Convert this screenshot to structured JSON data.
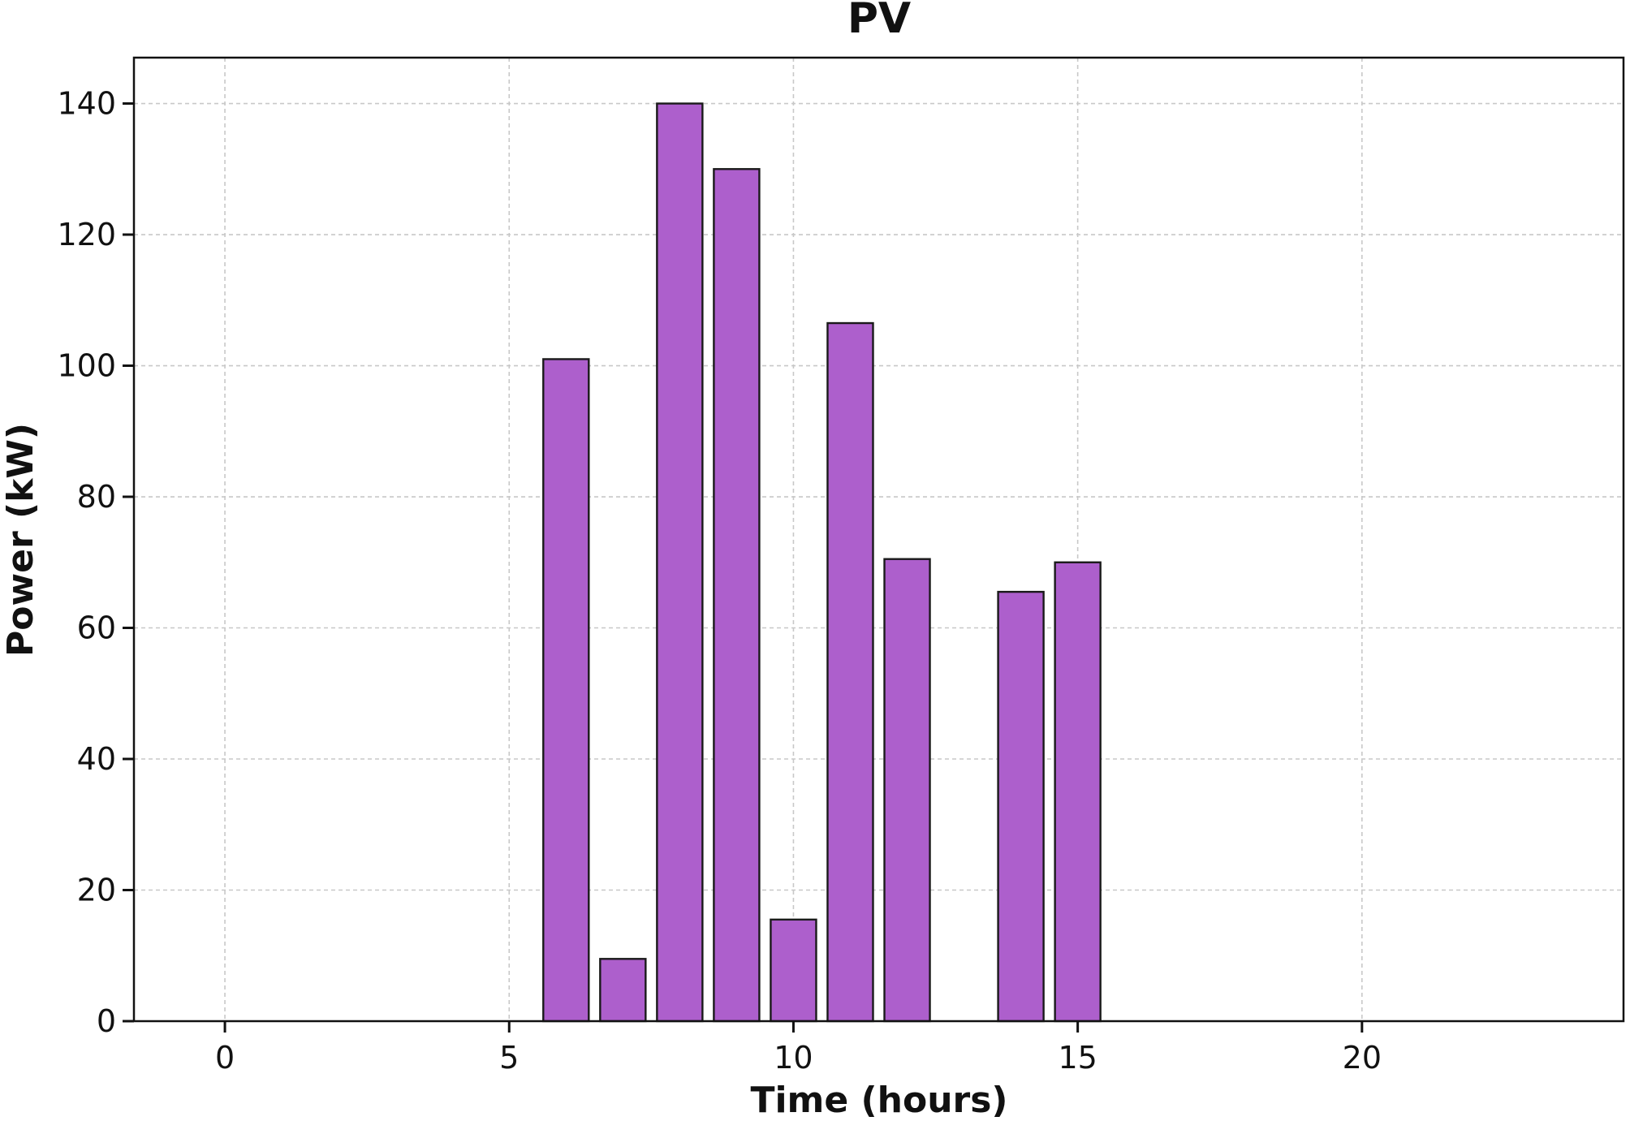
{
  "chart_data": {
    "type": "bar",
    "title": "PV",
    "xlabel": "Time (hours)",
    "ylabel": "Power (kW)",
    "xlim": [
      -1.6,
      24.6
    ],
    "ylim": [
      0,
      147
    ],
    "x_ticks": [
      0,
      5,
      10,
      15,
      20
    ],
    "y_ticks": [
      0,
      20,
      40,
      60,
      80,
      100,
      120,
      140
    ],
    "grid": true,
    "bar_color": "#ad5fcc",
    "edge_color": "#1a1a1a",
    "series": [
      {
        "x": [
          6,
          7,
          8,
          9,
          10,
          11,
          12,
          14,
          15
        ],
        "values": [
          101,
          9.5,
          140,
          130,
          15.5,
          106.5,
          70.5,
          65.5,
          70
        ]
      }
    ]
  }
}
